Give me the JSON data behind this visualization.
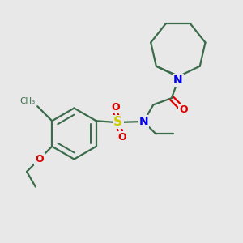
{
  "bg_color": "#e8e8e8",
  "bond_color": "#3a6b4a",
  "N_color": "#0000ee",
  "O_color": "#dd0000",
  "S_color": "#cccc00",
  "lw": 1.6,
  "dpi": 100,
  "xlim": [
    0,
    10
  ],
  "ylim": [
    0,
    10
  ]
}
